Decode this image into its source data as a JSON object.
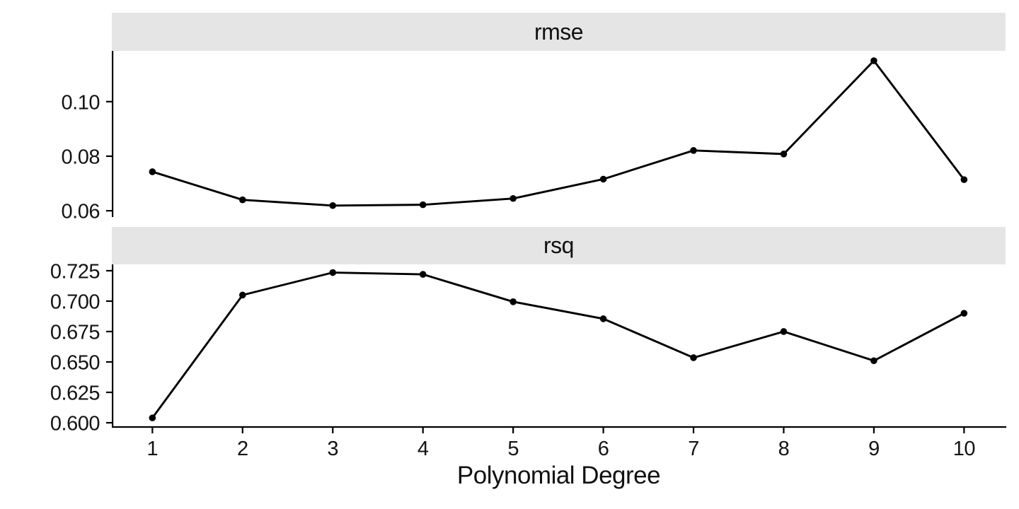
{
  "chart_data": {
    "type": "line",
    "title": "",
    "xlabel": "Polynomial Degree",
    "ylabel": "",
    "x": [
      1,
      2,
      3,
      4,
      5,
      6,
      7,
      8,
      9,
      10
    ],
    "xtick_labels": [
      "1",
      "2",
      "3",
      "4",
      "5",
      "6",
      "7",
      "8",
      "9",
      "10"
    ],
    "xlim": [
      0.55,
      10.46
    ],
    "grid": "off",
    "legend": "none",
    "line_color": "#000000",
    "point_color": "#000000",
    "axis_color": "#000000",
    "strip_bg": "#E5E5E5",
    "facets": [
      {
        "title": "rmse",
        "series_name": "rmse",
        "values": [
          0.0743,
          0.064,
          0.0619,
          0.0622,
          0.0645,
          0.0716,
          0.0821,
          0.0808,
          0.115,
          0.0714
        ],
        "yticks": [
          0.06,
          0.08,
          0.1
        ],
        "ytick_labels": [
          "0.06",
          "0.08",
          "0.10"
        ],
        "ylim": [
          0.0577,
          0.1186
        ]
      },
      {
        "title": "rsq",
        "series_name": "rsq",
        "values": [
          0.604,
          0.705,
          0.7235,
          0.722,
          0.6995,
          0.6855,
          0.6535,
          0.675,
          0.651,
          0.69
        ],
        "yticks": [
          0.6,
          0.625,
          0.65,
          0.675,
          0.7,
          0.725
        ],
        "ytick_labels": [
          "0.600",
          "0.625",
          "0.650",
          "0.675",
          "0.700",
          "0.725"
        ],
        "ylim": [
          0.5971,
          0.7302
        ]
      }
    ]
  }
}
